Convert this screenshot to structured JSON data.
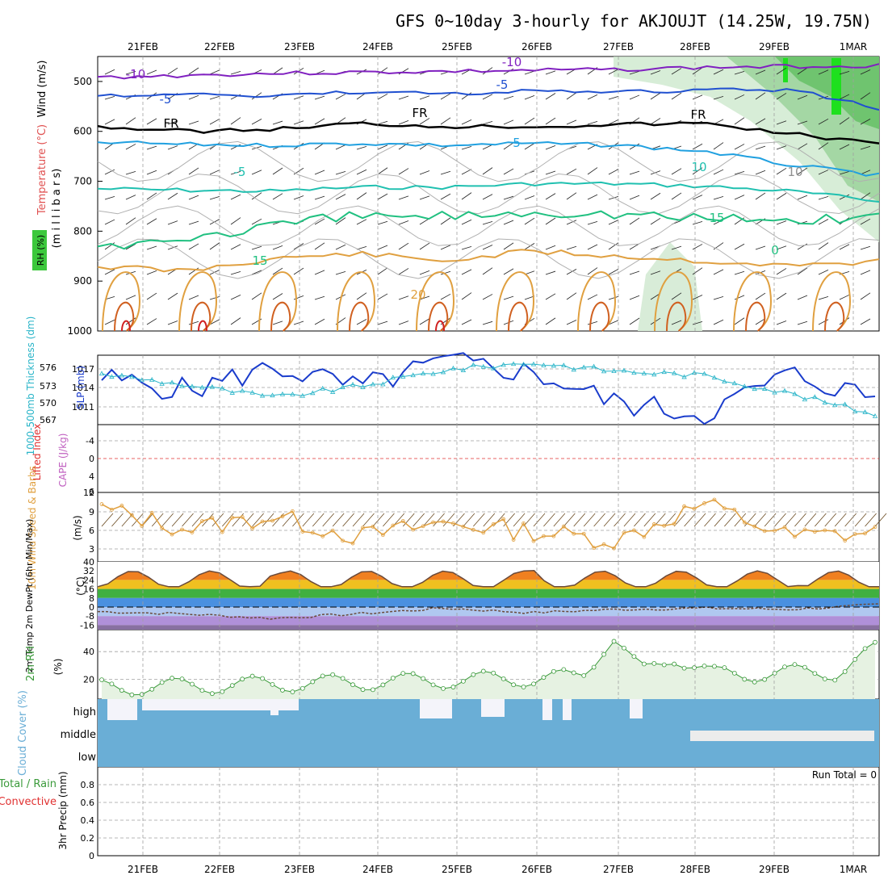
{
  "title": "GFS 0~10day 3-hourly for AKJOUJT (14.25W, 19.75N)",
  "date_labels": [
    "21FEB",
    "22FEB",
    "23FEB",
    "24FEB",
    "25FEB",
    "26FEB",
    "27FEB",
    "28FEB",
    "29FEB",
    "1MAR"
  ],
  "colors": {
    "grid": "#a0a0a0",
    "frame": "#000000",
    "rh_green": "#3cc83c",
    "slp": "#1a3ccc",
    "thick": "#28b4c8",
    "wind10": "#e0a040",
    "cloud": "#6aaed6",
    "rh2m": "#3a9a3a"
  },
  "panels": {
    "upper_air": {
      "ylabel_wind": "Wind (m/s)",
      "ylabel_temp": "Temperature (°C)",
      "ylabel_mb": "(m i l l i b a r s)",
      "ylabel_rh": "RH (%)",
      "yticks": [
        "500",
        "600",
        "700",
        "800",
        "900",
        "1000"
      ],
      "contour_labels": [
        "-10",
        "-10",
        "-5",
        "-5",
        "FR",
        "FR",
        "FR",
        "5",
        "-5",
        "10",
        "15",
        "15",
        "0",
        "20",
        "10"
      ],
      "chart_data": {
        "type": "line",
        "title": "",
        "ylim": [
          1000,
          450
        ],
        "series": [
          {
            "name": "",
            "color": "#8020c0",
            "values": [
              492,
              488,
              484,
              482,
              480,
              478,
              476,
              472,
              470,
              468
            ]
          },
          {
            "name": "",
            "color": "#2050d0",
            "values": [
              530,
              526,
              528,
              522,
              524,
              520,
              522,
              518,
              516,
              555
            ]
          },
          {
            "name": "",
            "color": "#000000",
            "values": [
              590,
              600,
              596,
              584,
              590,
              590,
              586,
              584,
              605,
              625
            ]
          },
          {
            "name": "",
            "color": "#20a0e0",
            "values": [
              622,
              626,
              628,
              624,
              628,
              624,
              628,
              640,
              668,
              688
            ]
          },
          {
            "name": "",
            "color": "#20c0b0",
            "values": [
              715,
              718,
              720,
              712,
              712,
              705,
              705,
              710,
              720,
              740
            ]
          },
          {
            "name": "",
            "color": "#20c080",
            "values": [
              830,
              815,
              790,
              770,
              770,
              760,
              765,
              775,
              778,
              770
            ]
          }
        ]
      }
    },
    "slp_thickness": {
      "ylabel": "SLP (mb)",
      "ylabel2": "1000-500mb Thickness (dm)",
      "yticks_left": [
        "576",
        "573",
        "570",
        "567"
      ],
      "yticks_right": [
        "1017",
        "1014",
        "1011"
      ],
      "chart_data": {
        "type": "line",
        "x_labels": [
          "21FEB",
          "22FEB",
          "23FEB",
          "24FEB",
          "25FEB",
          "26FEB",
          "27FEB",
          "28FEB",
          "29FEB",
          "1MAR"
        ],
        "ylim": [
          1008.5,
          1018.5
        ],
        "series": [
          {
            "name": "",
            "values": [
              1015.2,
              1013.4,
              1016.8,
              1013.8,
              1017.6,
              1016.0,
              1011.6,
              1010.0,
              1015.8,
              1012.4
            ]
          },
          {
            "name": "",
            "values": [
              1015.8,
              1014.2,
              1012.4,
              1014.0,
              1016.4,
              1017.4,
              1016.2,
              1015.6,
              1013.0,
              1010.0
            ]
          }
        ]
      }
    },
    "cape_li": {
      "ylabel_li": "Lifted Index",
      "ylabel_cape": "CAPE (J/kg)",
      "yticks": [
        "-4",
        "0",
        "4",
        "6"
      ],
      "chart_data": {
        "type": "line",
        "ylim": [
          -6,
          6
        ],
        "series": []
      }
    },
    "wind10": {
      "ylabel": "10m Wind Speed & Barbs",
      "unit": "(m/s)",
      "yticks": [
        "12",
        "9",
        "6",
        "3",
        "40"
      ],
      "chart_data": {
        "type": "line",
        "x_labels": [
          "21FEB",
          "22FEB",
          "23FEB",
          "24FEB",
          "25FEB",
          "26FEB",
          "27FEB",
          "28FEB",
          "29FEB",
          "1MAR"
        ],
        "ylim": [
          1,
          12
        ],
        "series": [
          {
            "name": "",
            "values": [
              9.4,
              6.2,
              8.2,
              5.0,
              7.2,
              5.8,
              4.4,
              10.2,
              5.0,
              5.6
            ]
          }
        ]
      }
    },
    "temp2m": {
      "ylabel": "2m Temp 2m DewPt (6hr Min/Max)",
      "unit": "(°C)",
      "yticks": [
        "32",
        "24",
        "16",
        "8",
        "0",
        "-8",
        "-16"
      ],
      "chart_data": {
        "type": "area",
        "x_labels": [
          "21FEB",
          "22FEB",
          "23FEB",
          "24FEB",
          "25FEB",
          "26FEB",
          "27FEB",
          "28FEB",
          "29FEB",
          "1MAR"
        ],
        "ylim": [
          -20,
          40
        ],
        "series": [
          {
            "name": "",
            "values": [
              30,
              24,
              29,
              31,
              23,
              30,
              34,
              26,
              30,
              22
            ]
          },
          {
            "name": "",
            "values": [
              -4,
              -6,
              -10,
              -6,
              -1,
              -5,
              -2,
              -1,
              -2,
              2
            ]
          }
        ]
      }
    },
    "rh2m": {
      "ylabel": "2m RH",
      "unit": "(%)",
      "yticks": [
        "40",
        "20"
      ],
      "chart_data": {
        "type": "area",
        "x_labels": [
          "21FEB",
          "22FEB",
          "23FEB",
          "24FEB",
          "25FEB",
          "26FEB",
          "27FEB",
          "28FEB",
          "29FEB",
          "1MAR"
        ],
        "ylim": [
          0,
          50
        ],
        "series": [
          {
            "name": "",
            "values": [
              12,
              20,
              14,
              22,
              20,
              24,
              47,
              35,
              22,
              40
            ]
          }
        ]
      }
    },
    "cloud": {
      "ylabel": "Cloud Cover (%)",
      "levels": [
        "high",
        "middle",
        "low"
      ],
      "chart_data": {
        "type": "bar",
        "x_labels": [
          "21FEB",
          "22FEB",
          "23FEB",
          "24FEB",
          "25FEB",
          "26FEB",
          "27FEB",
          "28FEB",
          "29FEB",
          "1MAR"
        ],
        "ylim": [
          0,
          100
        ],
        "series": [
          {
            "name": "high",
            "values": [
              10,
              10,
              60,
              100,
              90,
              80,
              100,
              100,
              100,
              100
            ]
          },
          {
            "name": "middle",
            "values": [
              100,
              100,
              100,
              100,
              100,
              100,
              100,
              60,
              40,
              30
            ]
          },
          {
            "name": "low",
            "values": [
              100,
              100,
              100,
              100,
              100,
              100,
              100,
              100,
              100,
              100
            ]
          }
        ]
      }
    },
    "precip": {
      "ylabel": "3hr Precip (mm)",
      "ylabel_total": "Total / Rain",
      "ylabel_conv": "Convective",
      "run_total": "Run Total = 0",
      "yticks": [
        "0.8",
        "0.6",
        "0.4",
        "0.2",
        "0"
      ],
      "chart_data": {
        "type": "bar",
        "ylim": [
          0,
          1
        ],
        "series": [
          {
            "name": "",
            "values": [
              0,
              0,
              0,
              0,
              0,
              0,
              0,
              0,
              0,
              0
            ]
          }
        ]
      }
    }
  }
}
